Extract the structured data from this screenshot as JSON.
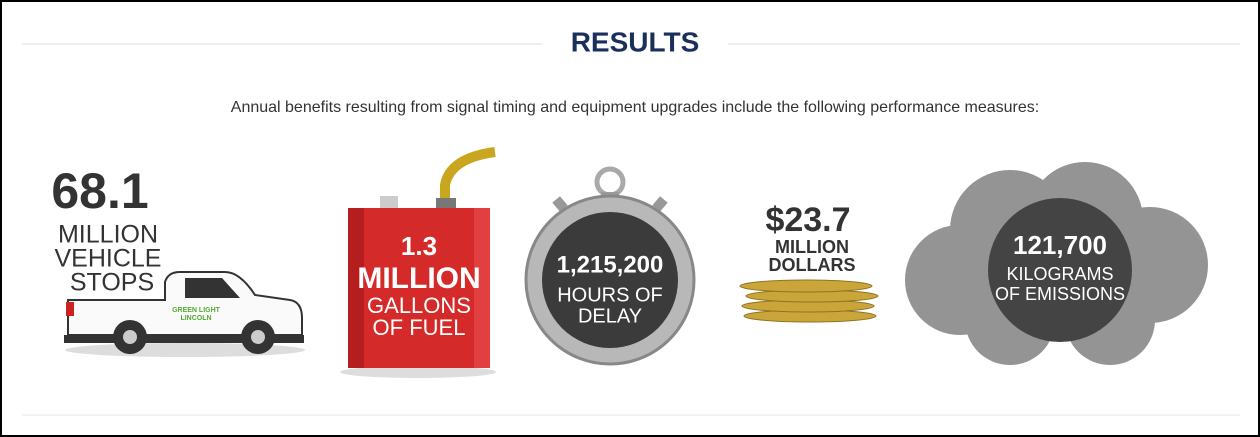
{
  "header": {
    "title": "RESULTS",
    "subtitle": "Annual benefits resulting from signal timing and equipment upgrades include the following performance measures:"
  },
  "measures": [
    {
      "number": "68.1",
      "lines": [
        "MILLION",
        "VEHICLE",
        "STOPS"
      ],
      "logo": [
        "GREEN LIGHT",
        "LINCOLN"
      ]
    },
    {
      "number": "1.3",
      "lines": [
        "MILLION",
        "GALLONS",
        "OF FUEL"
      ]
    },
    {
      "number": "1,215,200",
      "lines": [
        "HOURS OF",
        "DELAY"
      ]
    },
    {
      "number": "$23.7",
      "lines": [
        "MILLION",
        "DOLLARS"
      ]
    },
    {
      "number": "121,700",
      "lines": [
        "KILOGRAMS",
        "OF EMISSIONS"
      ]
    }
  ]
}
